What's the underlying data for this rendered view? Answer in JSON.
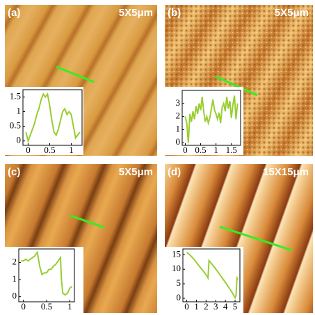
{
  "chart_data": [
    {
      "type": "line",
      "label": "(a)",
      "scale": "5X5μm",
      "color": "#9acd32",
      "x": [
        -0.05,
        0.0,
        0.05,
        0.1,
        0.15,
        0.2,
        0.25,
        0.3,
        0.35,
        0.4,
        0.45,
        0.5,
        0.55,
        0.6,
        0.65,
        0.7,
        0.75,
        0.8,
        0.85,
        0.9,
        0.95,
        1.0,
        1.05,
        1.1,
        1.15,
        1.2
      ],
      "values": [
        0.3,
        0.0,
        0.2,
        0.4,
        0.6,
        0.9,
        1.1,
        1.4,
        1.6,
        1.5,
        1.6,
        1.2,
        0.7,
        0.3,
        0.2,
        0.4,
        0.7,
        1.0,
        1.1,
        0.9,
        1.0,
        0.9,
        0.5,
        0.1,
        0.2,
        0.3
      ],
      "xlim": [
        -0.12,
        1.25
      ],
      "ylim": [
        -0.15,
        1.75
      ],
      "xticks": [
        0,
        0.5,
        1
      ],
      "yticks": [
        0,
        0.5,
        1,
        1.5
      ]
    },
    {
      "type": "line",
      "label": "(b)",
      "scale": "5X5μm",
      "color": "#9acd32",
      "x": [
        0.0,
        0.05,
        0.1,
        0.15,
        0.2,
        0.25,
        0.3,
        0.35,
        0.4,
        0.45,
        0.5,
        0.55,
        0.6,
        0.65,
        0.7,
        0.75,
        0.8,
        0.85,
        0.9,
        0.95,
        1.0,
        1.05,
        1.1,
        1.15,
        1.2,
        1.25,
        1.3,
        1.35,
        1.4,
        1.45,
        1.5,
        1.55,
        1.6,
        1.65,
        1.7
      ],
      "values": [
        2.0,
        1.5,
        0.0,
        2.2,
        1.6,
        2.4,
        1.8,
        2.8,
        2.2,
        3.0,
        2.5,
        3.5,
        2.4,
        1.6,
        2.0,
        1.5,
        1.9,
        2.6,
        3.3,
        2.5,
        2.2,
        1.8,
        2.3,
        1.5,
        2.7,
        3.0,
        2.4,
        3.5,
        2.6,
        3.2,
        1.9,
        2.9,
        3.6,
        1.8,
        3.0
      ],
      "xlim": [
        -0.1,
        1.8
      ],
      "ylim": [
        -0.2,
        4.0
      ],
      "xticks": [
        0,
        0.5,
        1,
        1.5
      ],
      "yticks": [
        0,
        1,
        2,
        3
      ]
    },
    {
      "type": "line",
      "label": "(c)",
      "scale": "5X5μm",
      "color": "#9acd32",
      "x": [
        -0.05,
        0.0,
        0.05,
        0.1,
        0.15,
        0.2,
        0.25,
        0.3,
        0.35,
        0.4,
        0.45,
        0.5,
        0.55,
        0.6,
        0.65,
        0.7,
        0.75,
        0.8,
        0.82,
        0.85,
        0.9,
        0.95,
        1.0,
        1.05
      ],
      "values": [
        2.1,
        2.1,
        2.2,
        2.1,
        2.2,
        2.3,
        2.4,
        2.6,
        1.8,
        1.3,
        1.4,
        1.4,
        1.6,
        1.6,
        1.8,
        1.9,
        2.1,
        2.3,
        1.0,
        0.2,
        0.1,
        0.2,
        0.5,
        0.6
      ],
      "xlim": [
        -0.1,
        1.1
      ],
      "ylim": [
        -0.3,
        2.8
      ],
      "xticks": [
        0,
        0.5,
        1
      ],
      "yticks": [
        0,
        1,
        2
      ]
    },
    {
      "type": "line",
      "label": "(d)",
      "scale": "15X15μm",
      "color": "#9acd32",
      "x": [
        0.0,
        0.3,
        0.6,
        0.9,
        1.2,
        1.5,
        1.8,
        2.1,
        2.2,
        2.3,
        2.6,
        2.9,
        3.2,
        3.5,
        3.8,
        4.1,
        4.4,
        4.7,
        5.0,
        5.1,
        5.2,
        5.3
      ],
      "values": [
        15.8,
        15.0,
        14.0,
        12.8,
        11.5,
        10.2,
        9.0,
        7.6,
        7.0,
        13.0,
        11.8,
        10.5,
        9.2,
        7.8,
        6.4,
        5.0,
        3.5,
        2.0,
        0.2,
        1.0,
        7.0,
        6.5
      ],
      "xlim": [
        -0.4,
        5.5
      ],
      "ylim": [
        -1.2,
        17.0
      ],
      "xticks": [
        0,
        1,
        2,
        3,
        4,
        5
      ],
      "yticks": [
        0,
        5,
        10,
        15
      ]
    }
  ]
}
